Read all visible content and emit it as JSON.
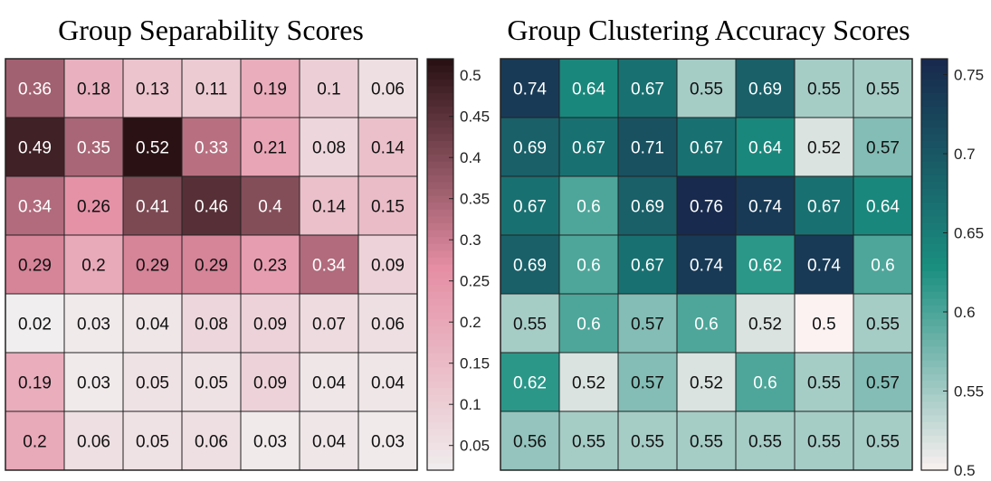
{
  "chart_data": [
    {
      "type": "heatmap",
      "title": "Group Separability Scores",
      "colormap": "pink-to-dark-maroon",
      "colorbar": {
        "min": 0.02,
        "max": 0.52,
        "ticks": [
          0.05,
          0.1,
          0.15,
          0.2,
          0.25,
          0.3,
          0.35,
          0.4,
          0.45,
          0.5
        ],
        "tick_labels": [
          "0.05",
          "0.1",
          "0.15",
          "0.2",
          "0.25",
          "0.3",
          "0.35",
          "0.4",
          "0.45",
          "0.5"
        ]
      },
      "values": [
        [
          0.36,
          0.18,
          0.13,
          0.11,
          0.19,
          0.1,
          0.06
        ],
        [
          0.49,
          0.35,
          0.52,
          0.33,
          0.21,
          0.08,
          0.14
        ],
        [
          0.34,
          0.26,
          0.41,
          0.46,
          0.4,
          0.14,
          0.15
        ],
        [
          0.29,
          0.2,
          0.29,
          0.29,
          0.23,
          0.34,
          0.09
        ],
        [
          0.02,
          0.03,
          0.04,
          0.08,
          0.09,
          0.07,
          0.06
        ],
        [
          0.19,
          0.03,
          0.05,
          0.05,
          0.09,
          0.04,
          0.04
        ],
        [
          0.2,
          0.06,
          0.05,
          0.06,
          0.03,
          0.04,
          0.03
        ]
      ],
      "colors": {
        "low": "#f0eeee",
        "mid": "#e58ea4",
        "high": "#2a1214"
      }
    },
    {
      "type": "heatmap",
      "title": "Group Clustering Accuracy Scores",
      "colormap": "white-to-teal-to-navy",
      "colorbar": {
        "min": 0.5,
        "max": 0.76,
        "ticks": [
          0.5,
          0.55,
          0.6,
          0.65,
          0.7,
          0.75
        ],
        "tick_labels": [
          "0.5",
          "0.55",
          "0.6",
          "0.65",
          "0.7",
          "0.75"
        ]
      },
      "values": [
        [
          0.74,
          0.64,
          0.67,
          0.55,
          0.69,
          0.55,
          0.55
        ],
        [
          0.69,
          0.67,
          0.71,
          0.67,
          0.64,
          0.52,
          0.57
        ],
        [
          0.67,
          0.6,
          0.69,
          0.76,
          0.74,
          0.67,
          0.64
        ],
        [
          0.69,
          0.6,
          0.67,
          0.74,
          0.62,
          0.74,
          0.6
        ],
        [
          0.55,
          0.6,
          0.57,
          0.6,
          0.52,
          0.5,
          0.55
        ],
        [
          0.62,
          0.52,
          0.57,
          0.52,
          0.6,
          0.55,
          0.57
        ],
        [
          0.56,
          0.55,
          0.55,
          0.55,
          0.55,
          0.55,
          0.55
        ]
      ],
      "colors": {
        "low": "#fdf2f2",
        "mid": "#1a8f80",
        "high": "#182a4e"
      }
    }
  ]
}
